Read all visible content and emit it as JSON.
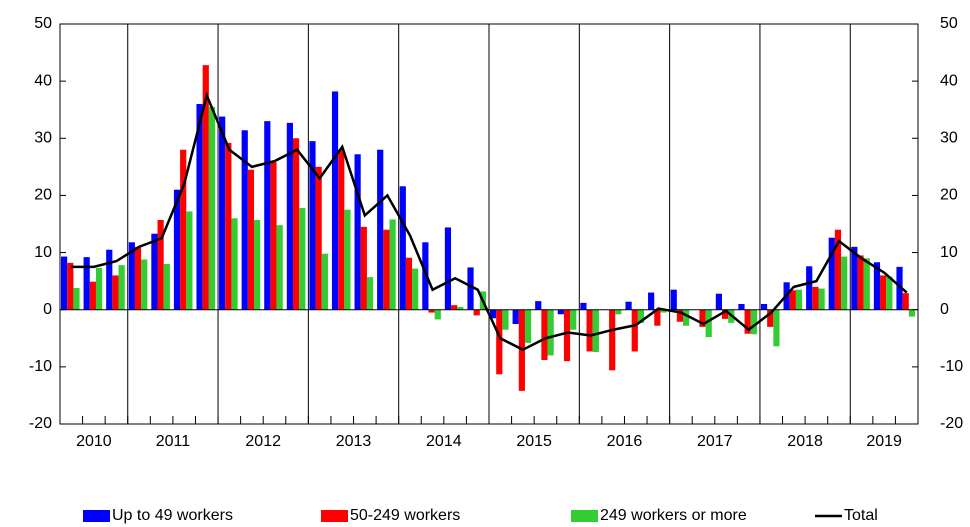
{
  "chart_data": {
    "type": "bar",
    "category_groups": [
      {
        "label": "2010",
        "count": 3
      },
      {
        "label": "2011",
        "count": 4
      },
      {
        "label": "2012",
        "count": 4
      },
      {
        "label": "2013",
        "count": 4
      },
      {
        "label": "2014",
        "count": 4
      },
      {
        "label": "2015",
        "count": 4
      },
      {
        "label": "2016",
        "count": 4
      },
      {
        "label": "2017",
        "count": 4
      },
      {
        "label": "2018",
        "count": 4
      },
      {
        "label": "2019",
        "count": 3
      }
    ],
    "series": [
      {
        "name": "Up to 49 workers",
        "color": "#0000ff",
        "type": "bar",
        "values": [
          9.3,
          9.2,
          10.5,
          11.8,
          13.3,
          21,
          36,
          33.8,
          31.4,
          33,
          32.7,
          29.5,
          38.2,
          27.2,
          28,
          21.6,
          11.8,
          14.4,
          7.4,
          -1.5,
          -2.5,
          1.5,
          -0.8,
          1.2,
          0,
          1.4,
          3,
          3.5,
          0,
          2.8,
          1,
          1,
          4.8,
          7.6,
          12.6,
          11,
          8.3,
          7.5
        ]
      },
      {
        "name": "50-249 workers",
        "color": "#ff0000",
        "type": "bar",
        "values": [
          8.2,
          4.9,
          6,
          11,
          15.7,
          28,
          42.8,
          29.2,
          24.5,
          25.8,
          30,
          25,
          28,
          14.5,
          14,
          9.1,
          -0.5,
          0.8,
          -1,
          -11.3,
          -14.2,
          -8.8,
          -9,
          -7.3,
          -10.6,
          -7.3,
          -2.8,
          -2.1,
          -3,
          -1.6,
          -4.2,
          -3,
          3.4,
          4,
          14,
          9.5,
          6,
          2.9
        ]
      },
      {
        "name": "249 workers or more",
        "color": "#33cc33",
        "type": "bar",
        "values": [
          3.8,
          7.3,
          7.8,
          8.8,
          8,
          17.2,
          35.5,
          16,
          15.7,
          14.8,
          17.8,
          9.8,
          17.5,
          5.7,
          15.8,
          7.2,
          -1.7,
          0.5,
          3.2,
          -3.5,
          -5.8,
          -8,
          -3.5,
          -7.4,
          -0.8,
          -2.3,
          -0.5,
          -2.8,
          -4.8,
          -2.3,
          -4.3,
          -6.4,
          3.5,
          3.7,
          9.3,
          9,
          5.8,
          -1.2
        ]
      },
      {
        "name": "Total",
        "color": "#000000",
        "type": "line",
        "values": [
          7.5,
          7.5,
          8.5,
          11,
          12.5,
          22,
          37.5,
          28,
          25,
          26,
          28,
          23,
          28.5,
          16.5,
          20,
          13,
          3.5,
          5.5,
          3.5,
          -5,
          -7,
          -5,
          -4,
          -4.5,
          -3.5,
          -2.7,
          0.2,
          -0.5,
          -2.5,
          -0.2,
          -3.5,
          -0.5,
          4,
          5,
          12,
          9,
          6.5,
          3
        ]
      }
    ],
    "ylim": [
      -20,
      50
    ],
    "yticks": [
      -20,
      -10,
      0,
      10,
      20,
      30,
      40,
      50
    ],
    "y2lim": [
      -20,
      50
    ],
    "y2ticks": [
      -20,
      -10,
      0,
      10,
      20,
      30,
      40,
      50
    ]
  }
}
